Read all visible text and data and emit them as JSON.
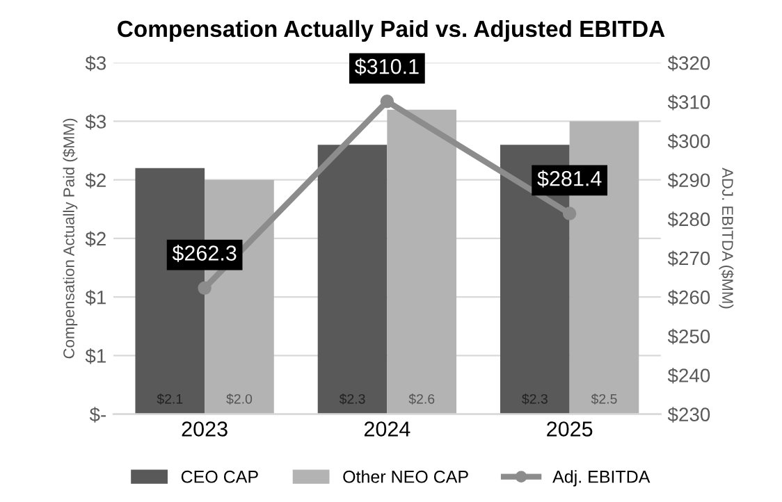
{
  "chart_data": {
    "type": "bar",
    "title": "Compensation Actually Paid vs. Adjusted EBITDA",
    "categories": [
      "2023",
      "2024",
      "2025"
    ],
    "series": [
      {
        "name": "CEO CAP",
        "color": "#595959",
        "values": [
          2.1,
          2.3,
          2.3
        ],
        "value_labels": [
          "$2.1",
          "$2.3",
          "$2.3"
        ]
      },
      {
        "name": "Other NEO CAP",
        "color": "#b3b3b3",
        "values": [
          2.0,
          2.6,
          2.5
        ],
        "value_labels": [
          "$2.0",
          "$2.6",
          "$2.5"
        ]
      },
      {
        "name": "Adj. EBITDA",
        "type": "line",
        "axis": "y2",
        "color": "#8c8c8c",
        "marker": "circle",
        "values": [
          262.3,
          310.1,
          281.4
        ],
        "value_labels": [
          "$262.3",
          "$310.1",
          "$281.4"
        ]
      }
    ],
    "ylabel": "Compensation Actually Paid ($MM)",
    "y2label": "ADJ. EBITDA ($MM)",
    "ylim": [
      0,
      3
    ],
    "yticks": [
      {
        "value": 0,
        "label": "$-"
      },
      {
        "value": 0.5,
        "label": "$1"
      },
      {
        "value": 1,
        "label": "$1"
      },
      {
        "value": 1.5,
        "label": "$2"
      },
      {
        "value": 2,
        "label": "$2"
      },
      {
        "value": 2.5,
        "label": "$3"
      },
      {
        "value": 3,
        "label": "$3"
      }
    ],
    "y2lim": [
      230,
      320
    ],
    "y2ticks": [
      {
        "value": 230,
        "label": "$230"
      },
      {
        "value": 240,
        "label": "$240"
      },
      {
        "value": 250,
        "label": "$250"
      },
      {
        "value": 260,
        "label": "$260"
      },
      {
        "value": 270,
        "label": "$270"
      },
      {
        "value": 280,
        "label": "$280"
      },
      {
        "value": 290,
        "label": "$290"
      },
      {
        "value": 300,
        "label": "$300"
      },
      {
        "value": 310,
        "label": "$310"
      },
      {
        "value": 320,
        "label": "$320"
      }
    ],
    "grid": "y",
    "legend": "bottom"
  }
}
